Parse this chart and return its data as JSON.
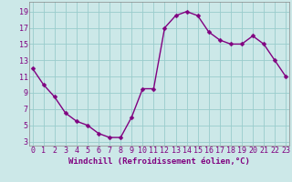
{
  "hours": [
    0,
    1,
    2,
    3,
    4,
    5,
    6,
    7,
    8,
    9,
    10,
    11,
    12,
    13,
    14,
    15,
    16,
    17,
    18,
    19,
    20,
    21,
    22,
    23
  ],
  "values": [
    12,
    10,
    8.5,
    6.5,
    5.5,
    5,
    4,
    3.5,
    3.5,
    6,
    9.5,
    9.5,
    17,
    18.5,
    19,
    18.5,
    16.5,
    15.5,
    15,
    15,
    16,
    15,
    13,
    11
  ],
  "line_color": "#800080",
  "marker_color": "#800080",
  "bg_color": "#cce8e8",
  "grid_color": "#99cccc",
  "xlabel": "Windchill (Refroidissement éolien,°C)",
  "yticks": [
    3,
    5,
    7,
    9,
    11,
    13,
    15,
    17,
    19
  ],
  "xticks": [
    0,
    1,
    2,
    3,
    4,
    5,
    6,
    7,
    8,
    9,
    10,
    11,
    12,
    13,
    14,
    15,
    16,
    17,
    18,
    19,
    20,
    21,
    22,
    23
  ],
  "ylim": [
    2.5,
    20.2
  ],
  "xlim": [
    -0.3,
    23.3
  ],
  "xlabel_fontsize": 6.5,
  "tick_fontsize": 6,
  "line_width": 1.0,
  "marker_size": 2.5
}
